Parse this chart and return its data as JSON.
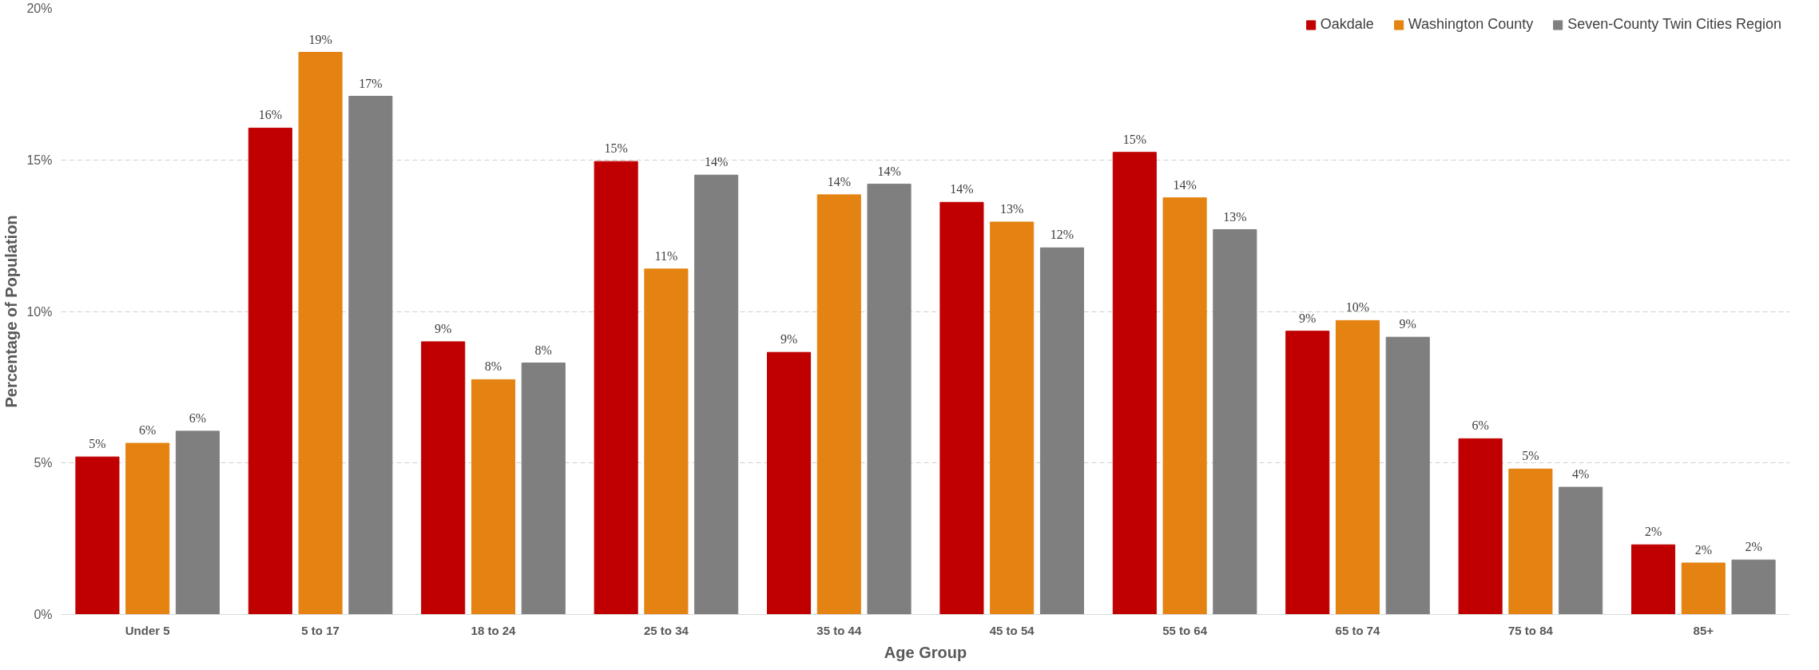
{
  "chart_data": {
    "type": "bar",
    "xlabel": "Age Group",
    "ylabel": "Percentage of Population",
    "categories": [
      "Under 5",
      "5 to 17",
      "18 to 24",
      "25 to 34",
      "35 to 44",
      "45 to 54",
      "55 to 64",
      "65 to 74",
      "75 to 84",
      "85+"
    ],
    "series": [
      {
        "name": "Oakdale",
        "color": "#c00000",
        "values": [
          5.2,
          16.05,
          9.0,
          14.95,
          8.65,
          13.6,
          15.25,
          9.35,
          5.8,
          2.3
        ],
        "value_labels": [
          "5%",
          "16%",
          "9%",
          "15%",
          "9%",
          "14%",
          "15%",
          "9%",
          "6%",
          "2%"
        ]
      },
      {
        "name": "Washington County",
        "color": "#e48312",
        "values": [
          5.65,
          18.55,
          7.75,
          11.4,
          13.85,
          12.95,
          13.75,
          9.7,
          4.8,
          1.7
        ],
        "value_labels": [
          "6%",
          "19%",
          "8%",
          "11%",
          "14%",
          "13%",
          "14%",
          "10%",
          "5%",
          "2%"
        ]
      },
      {
        "name": "Seven-County Twin Cities Region",
        "color": "#7f7f7f",
        "values": [
          6.05,
          17.1,
          8.3,
          14.5,
          14.2,
          12.1,
          12.7,
          9.15,
          4.2,
          1.8
        ],
        "value_labels": [
          "6%",
          "17%",
          "8%",
          "14%",
          "14%",
          "12%",
          "13%",
          "9%",
          "4%",
          "2%"
        ]
      }
    ],
    "ylim": [
      0,
      20
    ],
    "yticks": [
      {
        "value": 0,
        "label": "0%"
      },
      {
        "value": 5,
        "label": "5%"
      },
      {
        "value": 10,
        "label": "10%"
      },
      {
        "value": 15,
        "label": "15%"
      },
      {
        "value": 20,
        "label": "20%"
      }
    ],
    "grid": "y",
    "legend": "top right"
  }
}
